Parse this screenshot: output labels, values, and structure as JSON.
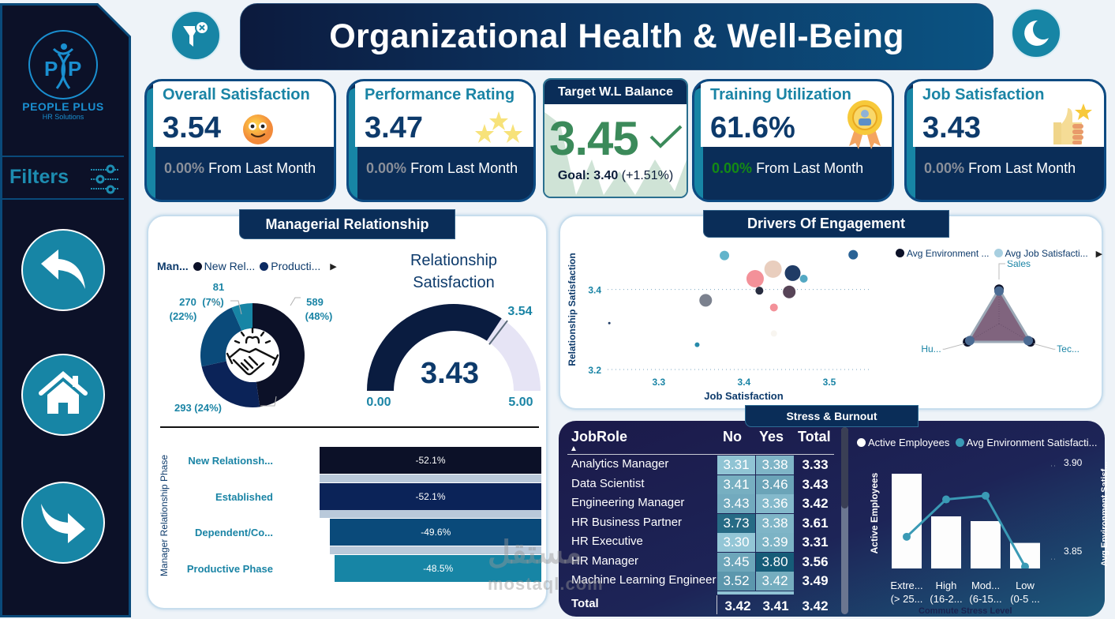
{
  "header": {
    "title": "Organizational Health & Well-Being",
    "clear_filters_icon": "filter-clear-icon",
    "theme_icon": "moon-icon"
  },
  "sidebar": {
    "brand": "PEOPLE PLUS",
    "brand_sub": "HR Solutions",
    "filters_label": "Filters",
    "nav": [
      {
        "name": "back",
        "icon": "back-arrow-icon"
      },
      {
        "name": "home",
        "icon": "home-icon"
      },
      {
        "name": "forward",
        "icon": "forward-arrow-icon"
      }
    ]
  },
  "kpis": [
    {
      "title": "Overall Satisfaction",
      "value": "3.54",
      "change": "0.00%",
      "change_text": "From Last Month",
      "icon": "smiley-emoji-icon"
    },
    {
      "title": "Performance Rating",
      "value": "3.47",
      "change": "0.00%",
      "change_text": "From Last Month",
      "icon": "stars-icon"
    },
    {
      "title": "Training Utilization",
      "value": "61.6%",
      "change": "0.00%",
      "change_text": "From Last Month",
      "icon": "award-ribbon-icon"
    },
    {
      "title": "Job Satisfaction",
      "value": "3.43",
      "change": "0.00%",
      "change_text": "From Last Month",
      "icon": "thumbs-up-icon"
    }
  ],
  "target": {
    "title": "Target W.L Balance",
    "value": "3.45",
    "goal_label": "Goal:",
    "goal_value": "3.40",
    "goal_delta": "(+1.51%)",
    "status_color": "#3b8a5a"
  },
  "managerial": {
    "title": "Managerial Relationship",
    "legend_title": "Man...",
    "legend": [
      {
        "label": "New Rel...",
        "color": "#0c1128"
      },
      {
        "label": "Producti...",
        "color": "#0b2a62"
      }
    ],
    "donut": {
      "slices": [
        {
          "label": "589",
          "pct": "(48%)",
          "value": 589,
          "color": "#0c1128"
        },
        {
          "label": "293 (24%)",
          "pct": "",
          "value": 293,
          "color": "#0b2358"
        },
        {
          "label": "270",
          "pct": "(22%)",
          "value": 270,
          "color": "#0a4a7a"
        },
        {
          "label": "81",
          "pct": "(7%)",
          "value": 81,
          "color": "#1785a5"
        }
      ]
    },
    "gauge": {
      "title_line1": "Relationship",
      "title_line2": "Satisfaction",
      "value": 3.43,
      "value_text": "3.43",
      "target": 3.54,
      "target_text": "3.54",
      "min_text": "0.00",
      "max_text": "5.00",
      "min": 0,
      "max": 5
    },
    "funnel": {
      "axis_title": "Manager Relationship Phase",
      "rows": [
        {
          "label": "New Relationsh...",
          "value": "-52.1%",
          "relative": 1.0,
          "color": "#0c1128"
        },
        {
          "label": "Established",
          "value": "-52.1%",
          "relative": 1.0,
          "color": "#0b2358"
        },
        {
          "label": "Dependent/Co...",
          "value": "-49.6%",
          "relative": 0.952,
          "color": "#0a4a7a"
        },
        {
          "label": "Productive Phase",
          "value": "-48.5%",
          "relative": 0.931,
          "color": "#1785a5"
        }
      ]
    }
  },
  "drivers": {
    "title": "Drivers Of Engagement",
    "scatter": {
      "xlabel": "Job Satisfaction",
      "ylabel": "Relationship Satisfaction",
      "x_ticks": [
        "3.3",
        "3.4",
        "3.5"
      ],
      "y_ticks": [
        "3.4",
        "3.2"
      ],
      "xlim": [
        3.24,
        3.55
      ],
      "ylim": [
        3.2,
        3.5
      ],
      "points": [
        {
          "x": 3.377,
          "y": 3.485,
          "r": 6,
          "color": "#5ab0c8"
        },
        {
          "x": 3.528,
          "y": 3.487,
          "r": 6,
          "color": "#1f5a8f"
        },
        {
          "x": 3.434,
          "y": 3.451,
          "r": 11,
          "color": "#e8cbbb"
        },
        {
          "x": 3.457,
          "y": 3.441,
          "r": 10,
          "color": "#14325e"
        },
        {
          "x": 3.413,
          "y": 3.427,
          "r": 11,
          "color": "#f28b93"
        },
        {
          "x": 3.47,
          "y": 3.427,
          "r": 5,
          "color": "#4aa3c0"
        },
        {
          "x": 3.418,
          "y": 3.397,
          "r": 5,
          "color": "#1c2236"
        },
        {
          "x": 3.453,
          "y": 3.394,
          "r": 8,
          "color": "#4e3a4e"
        },
        {
          "x": 3.355,
          "y": 3.373,
          "r": 8,
          "color": "#747a88"
        },
        {
          "x": 3.435,
          "y": 3.355,
          "r": 5,
          "color": "#f28b93"
        },
        {
          "x": 3.435,
          "y": 3.29,
          "r": 4,
          "color": "#f8f4ef"
        },
        {
          "x": 3.345,
          "y": 3.262,
          "r": 3,
          "color": "#1a84a5"
        },
        {
          "x": 3.242,
          "y": 3.316,
          "r": 1.5,
          "color": "#14325e"
        }
      ]
    },
    "radar": {
      "legend": [
        {
          "label": "Avg Environment ...",
          "color": "#0c1128"
        },
        {
          "label": "Avg Job Satisfacti...",
          "color": "#a8cfe0"
        }
      ],
      "axes": [
        "Sales",
        "Tec...",
        "Hu..."
      ],
      "series": [
        {
          "name": "Avg Environment Satisfaction",
          "values": [
            0.95,
            1.0,
            1.0
          ],
          "color": "#0c1128"
        },
        {
          "name": "Avg Job Satisfaction",
          "values": [
            0.9,
            0.93,
            0.93
          ],
          "color": "#4b6b93"
        }
      ]
    }
  },
  "stress": {
    "title": "Stress & Burnout",
    "table": {
      "headers": [
        "JobRole",
        "No",
        "Yes",
        "Total"
      ],
      "rows": [
        {
          "role": "Analytics Manager",
          "no": "3.31",
          "yes": "3.38",
          "total": "3.33"
        },
        {
          "role": "Data Scientist",
          "no": "3.41",
          "yes": "3.46",
          "total": "3.43"
        },
        {
          "role": "Engineering Manager",
          "no": "3.43",
          "yes": "3.36",
          "total": "3.42"
        },
        {
          "role": "HR Business Partner",
          "no": "3.73",
          "yes": "3.38",
          "total": "3.61"
        },
        {
          "role": "HR Executive",
          "no": "3.30",
          "yes": "3.39",
          "total": "3.31"
        },
        {
          "role": "HR Manager",
          "no": "3.45",
          "yes": "3.80",
          "total": "3.56"
        },
        {
          "role": "Machine Learning Engineer",
          "no": "3.52",
          "yes": "3.42",
          "total": "3.49"
        }
      ],
      "total": {
        "label": "Total",
        "no": "3.42",
        "yes": "3.41",
        "total": "3.42"
      }
    },
    "combo": {
      "legend": [
        {
          "label": "Active Employees",
          "color": "#ffffff"
        },
        {
          "label": "Avg Environment Satisfacti...",
          "color": "#3a9ab5"
        }
      ],
      "y_left_label": "Active Employees",
      "y_right_label": "Avg Environment Satisf...",
      "y_right_ticks": [
        "3.90",
        "3.85"
      ],
      "x_title": "Commute Stress Level",
      "categories": [
        {
          "line1": "Extre...",
          "line2": "(> 25..."
        },
        {
          "line1": "High",
          "line2": "(16-2..."
        },
        {
          "line1": "Mod...",
          "line2": "(6-15..."
        },
        {
          "line1": "Low",
          "line2": "(0-5 ..."
        }
      ],
      "bars_relative": [
        1.0,
        0.55,
        0.5,
        0.27
      ],
      "line_values": [
        3.862,
        3.882,
        3.884,
        3.846
      ],
      "right_range": [
        3.845,
        3.9
      ]
    }
  },
  "watermark": {
    "text": "مستقل",
    "sub": "mostaql.com"
  }
}
